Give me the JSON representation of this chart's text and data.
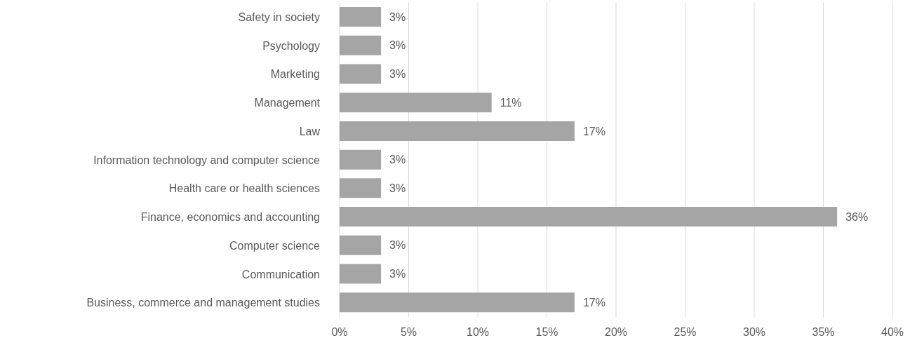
{
  "chart_data": {
    "type": "bar",
    "orientation": "horizontal",
    "categories": [
      "Safety in society",
      "Psychology",
      "Marketing",
      "Management",
      "Law",
      "Information technology and computer science",
      "Health care or health sciences",
      "Finance, economics and accounting",
      "Computer science",
      "Communication",
      "Business, commerce and management studies"
    ],
    "values": [
      3,
      3,
      3,
      11,
      17,
      3,
      3,
      36,
      3,
      3,
      17
    ],
    "value_labels": [
      "3%",
      "3%",
      "3%",
      "11%",
      "17%",
      "3%",
      "3%",
      "36%",
      "3%",
      "3%",
      "17%"
    ],
    "color": "#a5a5a5",
    "xlim": [
      0,
      40
    ],
    "xticks": [
      {
        "value": 0,
        "label": "0%"
      },
      {
        "value": 5,
        "label": "5%"
      },
      {
        "value": 10,
        "label": "10%"
      },
      {
        "value": 15,
        "label": "15%"
      },
      {
        "value": 20,
        "label": "20%"
      },
      {
        "value": 25,
        "label": "25%"
      },
      {
        "value": 30,
        "label": "30%"
      },
      {
        "value": 35,
        "label": "35%"
      },
      {
        "value": 40,
        "label": "40%"
      }
    ],
    "grid": "x"
  }
}
